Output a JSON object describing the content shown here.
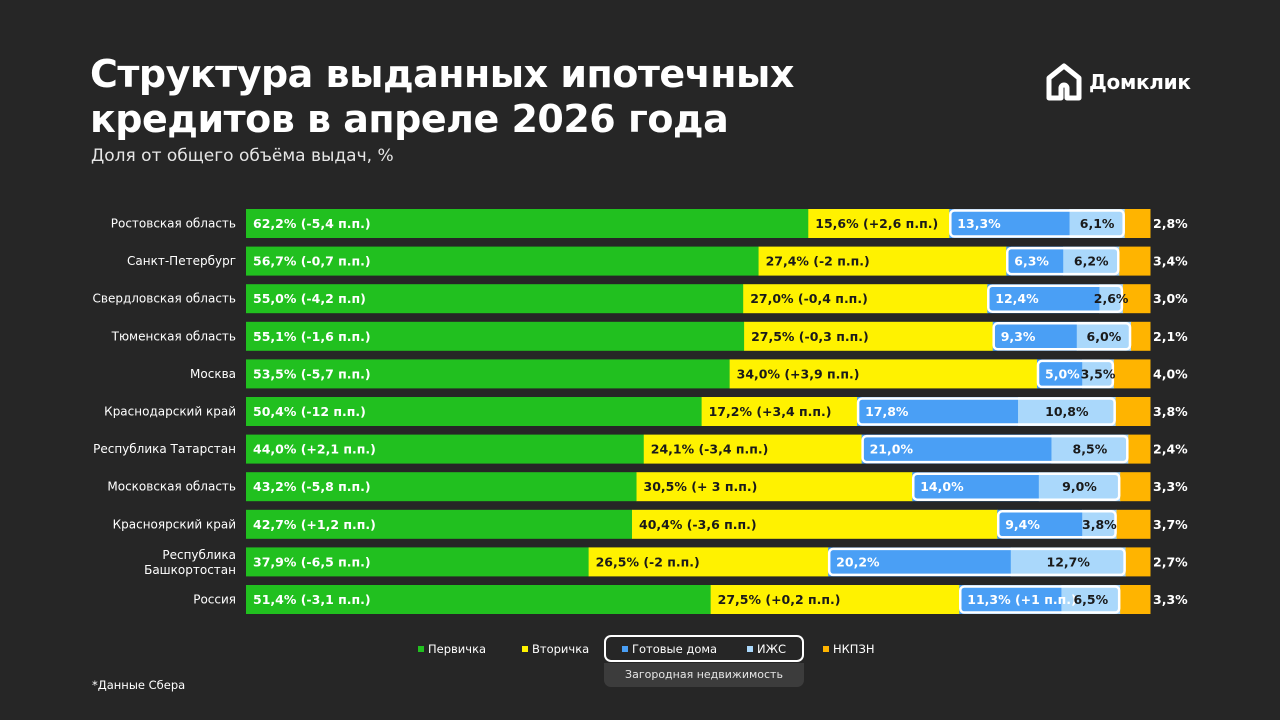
{
  "title": "Структура выданных ипотечных кредитов в апреле 2026 года",
  "subtitle": "Доля от общего объёма выдач, %",
  "brand": {
    "name": "Домклик",
    "icon": "domclick-house-icon"
  },
  "footnote": "*Данные Сбера",
  "legend_group_label": "Загородная недвижимость",
  "colors": {
    "background": "#262626",
    "primary": "#21c01f",
    "secondary": "#fff200",
    "houses": "#4a9ff5",
    "izhs": "#aad8fb",
    "nkpzn": "#ffb400"
  },
  "chart_data": {
    "type": "bar",
    "orientation": "horizontal",
    "stacked": true,
    "categories": [
      "Ростовская область",
      "Санкт-Петербург",
      "Свердловская область",
      "Тюменская область",
      "Москва",
      "Краснодарский край",
      "Республика Татарстан",
      "Московская область",
      "Красноярский край",
      "Республика Башкортостан",
      "Россия"
    ],
    "series": [
      {
        "name": "Первичка",
        "color": "#21c01f",
        "values": [
          62.2,
          56.7,
          55.0,
          55.1,
          53.5,
          50.4,
          44.0,
          43.2,
          42.7,
          37.9,
          51.4
        ],
        "labels": [
          "62,2% (-5,4 п.п.)",
          "56,7% (-0,7 п.п.)",
          "55,0% (-4,2 п.п)",
          "55,1% (-1,6 п.п.)",
          "53,5% (-5,7 п.п.)",
          "50,4% (-12 п.п.)",
          "44,0% (+2,1 п.п.)",
          "43,2% (-5,8 п.п.)",
          "42,7% (+1,2 п.п.)",
          "37,9% (-6,5 п.п.)",
          "51,4% (-3,1 п.п.)"
        ]
      },
      {
        "name": "Вторичка",
        "color": "#fff200",
        "values": [
          15.6,
          27.4,
          27.0,
          27.5,
          34.0,
          17.2,
          24.1,
          30.5,
          40.4,
          26.5,
          27.5
        ],
        "labels": [
          "15,6% (+2,6 п.п.)",
          "27,4% (-2 п.п.)",
          "27,0% (-0,4 п.п.)",
          "27,5% (-0,3 п.п.)",
          "34,0% (+3,9 п.п.)",
          "17,2% (+3,4 п.п.)",
          "24,1% (-3,4 п.п.)",
          "30,5% (+ 3 п.п.)",
          "40,4% (-3,6 п.п.)",
          "26,5% (-2 п.п.)",
          "27,5% (+0,2 п.п.)"
        ]
      },
      {
        "name": "Готовые дома",
        "color": "#4a9ff5",
        "values": [
          13.3,
          6.3,
          12.4,
          9.3,
          5.0,
          17.8,
          21.0,
          14.0,
          9.4,
          20.2,
          11.3
        ],
        "labels": [
          "13,3%",
          "6,3%",
          "12,4%",
          "9,3%",
          "5,0%",
          "17,8%",
          "21,0%",
          "14,0%",
          "9,4%",
          "20,2%",
          "11,3% (+1 п.п.)"
        ]
      },
      {
        "name": "ИЖС",
        "color": "#aad8fb",
        "values": [
          6.1,
          6.2,
          2.6,
          6.0,
          3.5,
          10.8,
          8.5,
          9.0,
          3.8,
          12.7,
          6.5
        ],
        "labels": [
          "6,1%",
          "6,2%",
          "2,6%",
          "6,0%",
          "3,5%",
          "10,8%",
          "8,5%",
          "9,0%",
          "3,8%",
          "12,7%",
          "6,5%"
        ]
      },
      {
        "name": "НКПЗН",
        "color": "#ffb400",
        "values": [
          2.8,
          3.4,
          3.0,
          2.1,
          4.0,
          3.8,
          2.4,
          3.3,
          3.7,
          2.7,
          3.3
        ],
        "labels": [
          "2,8%",
          "3,4%",
          "3,0%",
          "2,1%",
          "4,0%",
          "3,8%",
          "2,4%",
          "3,3%",
          "3,7%",
          "2,7%",
          "3,3%"
        ]
      }
    ],
    "xlim": [
      0,
      100
    ],
    "grid": false,
    "legend_position": "bottom"
  }
}
